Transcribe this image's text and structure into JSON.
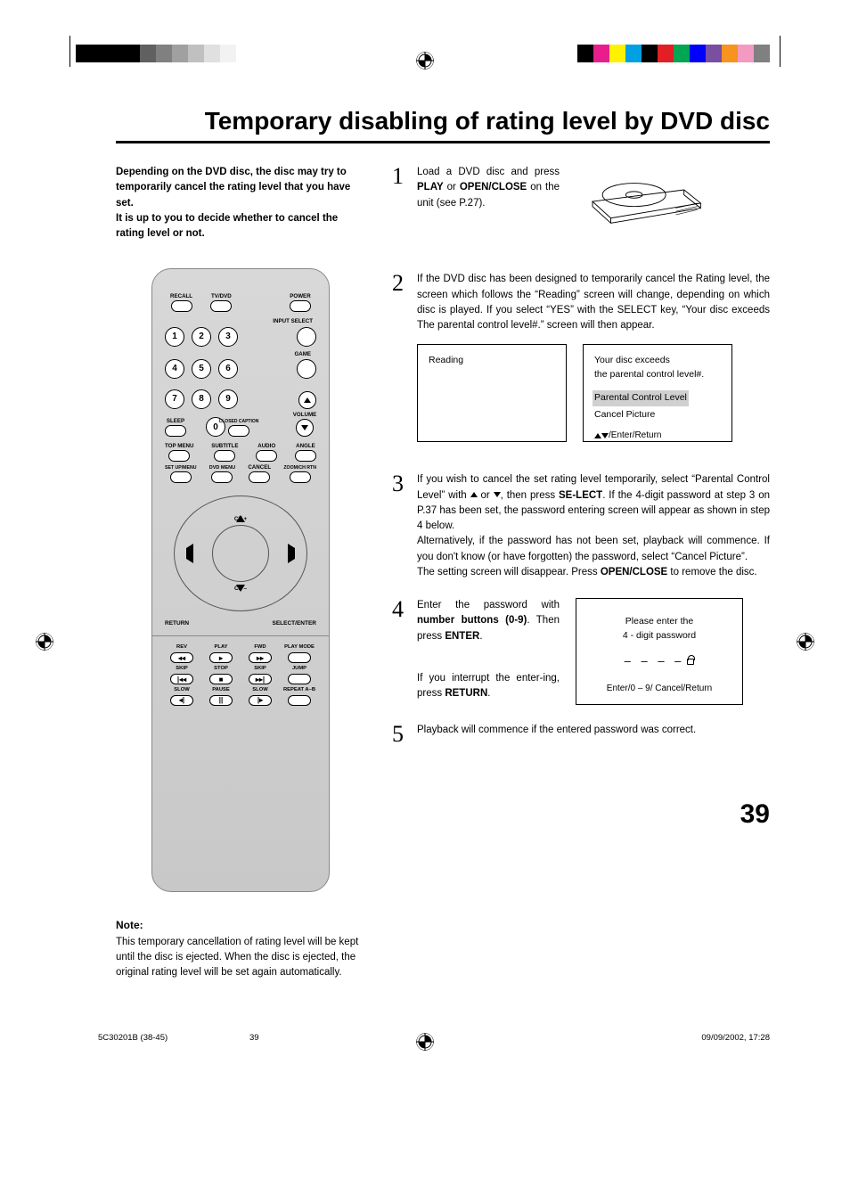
{
  "title": "Temporary disabling of rating level by DVD disc",
  "intro": "Depending on the DVD disc, the disc may try to temporarily cancel the rating level that you have set.\nIt is up to you to decide whether to cancel the rating level or not.",
  "note": {
    "heading": "Note:",
    "body": "This temporary cancellation of rating level will be kept until the disc is ejected. When the disc is ejected, the original rating level will be set again automatically."
  },
  "steps": {
    "s1": {
      "num": "1",
      "html": "Load a DVD disc and press <b>PLAY</b> or <b>OPEN/CLOSE</b> on the unit (see P.27)."
    },
    "s2": {
      "num": "2",
      "html": "If the DVD disc has been designed to temporarily cancel the Rating level, the screen which follows the “Reading” screen will change, depending on which disc is played. If you select “YES” with the SELECT key, “Your disc exceeds The parental control level#.” screen will then appear."
    },
    "s3": {
      "num": "3",
      "html": "If you wish to cancel the set rating level temporarily, select “Parental Control Level” with <span class='tri-u-sm'></span> or <span class='tri-d-sm'></span>, then press <b>SE-LECT</b>. If the 4-digit password at step 3 on P.37 has been set, the password entering screen will appear as shown in step 4 below.<br>Alternatively, if the password has not been set, playback will commence. If you don't know (or have forgotten) the password, select “Cancel Picture”.<br>The setting screen will disappear. Press <b>OPEN/CLOSE</b> to remove the disc."
    },
    "s4": {
      "num": "4",
      "html_a": "Enter the password with <b>number buttons (0-9)</b>. Then press <b>ENTER</b>.",
      "html_b": "If you interrupt the enter-ing, press <b>RETURN</b>."
    },
    "s5": {
      "num": "5",
      "html": "Playback will commence if the entered password was correct."
    }
  },
  "screen_reading": "Reading",
  "screen_exceed": {
    "l1": "Your disc exceeds",
    "l2": "the parental control level#.",
    "opt1": "Parental Control Level",
    "opt2": "Cancel Picture",
    "hint": "/Enter/Return"
  },
  "screen_password": {
    "l1": "Please enter the",
    "l2": "4 - digit password",
    "hint": "Enter/0 – 9/ Cancel/Return"
  },
  "page_num": "39",
  "footer": {
    "doc": "5C30201B (38-45)",
    "page": "39",
    "date": "09/09/2002, 17:28"
  },
  "remote": {
    "row1": [
      "RECALL",
      "TV/DVD",
      "",
      "POWER"
    ],
    "input_select": "INPUT SELECT",
    "game": "GAME",
    "sleep": "SLEEP",
    "closed": "CLOSED\nCAPTION",
    "volume": "VOLUME",
    "row_menu1": [
      "TOP MENU",
      "SUBTITLE",
      "AUDIO",
      "ANGLE"
    ],
    "row_menu2": [
      "SET UP/MENU",
      "DVD MENU",
      "CANCEL",
      "ZOOM/CH RTN"
    ],
    "nav": {
      "return": "RETURN",
      "select": "SELECT/ENTER",
      "chp": "CH +",
      "chm": "CH –"
    },
    "play": [
      [
        "REV",
        "◂◂"
      ],
      [
        "PLAY",
        "▸"
      ],
      [
        "FWD",
        "▸▸"
      ],
      [
        "PLAY MODE",
        ""
      ],
      [
        "SKIP",
        "|◂◂"
      ],
      [
        "STOP",
        "■"
      ],
      [
        "SKIP",
        "▸▸|"
      ],
      [
        "JUMP",
        ""
      ],
      [
        "SLOW",
        "◂|"
      ],
      [
        "PAUSE",
        "||"
      ],
      [
        "SLOW",
        "|▸"
      ],
      [
        "REPEAT A–B",
        ""
      ]
    ]
  },
  "colors": {
    "bars_left": [
      "#000000",
      "#000000",
      "#000000",
      "#000000",
      "#606060",
      "#808080",
      "#a0a0a0",
      "#c0c0c0",
      "#e0e0e0",
      "#f2f2f2",
      "#ffffff",
      "#ffffff"
    ],
    "bars_right": [
      "#000000",
      "#e91e8c",
      "#fff200",
      "#00a0e3",
      "#000000",
      "#e31e24",
      "#00a651",
      "#0000ff",
      "#7a4ea0",
      "#f7931e",
      "#f29ac1",
      "#808080"
    ]
  }
}
